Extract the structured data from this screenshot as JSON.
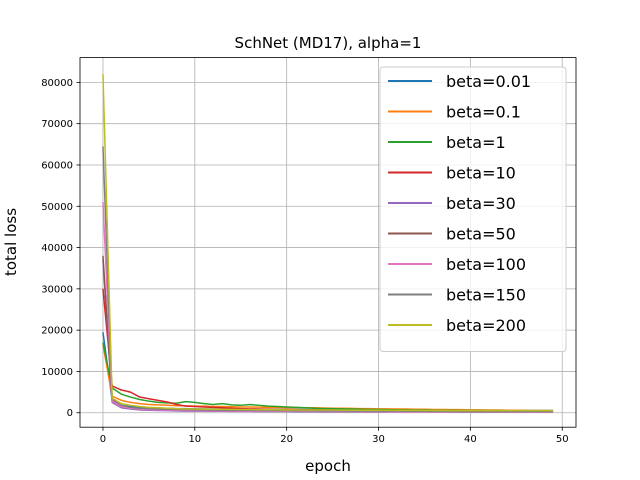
{
  "chart_data": {
    "type": "line",
    "title": "SchNet (MD17), alpha=1",
    "xlabel": "epoch",
    "ylabel": "total loss",
    "xlim": [
      -2.5,
      51.5
    ],
    "ylim": [
      -3500,
      86000
    ],
    "xticks": [
      0,
      10,
      20,
      30,
      40,
      50
    ],
    "yticks": [
      0,
      10000,
      20000,
      30000,
      40000,
      50000,
      60000,
      70000,
      80000
    ],
    "grid": true,
    "legend_position": "top-right",
    "x": [
      0,
      1,
      2,
      3,
      4,
      5,
      6,
      7,
      8,
      9,
      10,
      11,
      12,
      13,
      14,
      15,
      16,
      17,
      18,
      19,
      20,
      21,
      22,
      23,
      24,
      25,
      26,
      27,
      28,
      29,
      30,
      31,
      32,
      33,
      34,
      35,
      36,
      37,
      38,
      39,
      40,
      41,
      42,
      43,
      44,
      45,
      46,
      47,
      48,
      49
    ],
    "series": [
      {
        "name": "beta=0.01",
        "color": "#1f77b4",
        "values": [
          19500,
          3000,
          1800,
          1500,
          1300,
          1200,
          1100,
          1100,
          1000,
          1000,
          950,
          900,
          900,
          880,
          860,
          850,
          840,
          830,
          820,
          810,
          800,
          790,
          780,
          770,
          760,
          760,
          750,
          740,
          740,
          730,
          720,
          710,
          700,
          690,
          680,
          670,
          660,
          650,
          640,
          630,
          620,
          610,
          600,
          590,
          580,
          570,
          560,
          550,
          540,
          530
        ]
      },
      {
        "name": "beta=0.1",
        "color": "#ff7f0e",
        "values": [
          16500,
          4000,
          3000,
          2500,
          2200,
          2000,
          1900,
          1800,
          1700,
          1700,
          1600,
          1600,
          1500,
          1500,
          1450,
          1400,
          1400,
          1350,
          1300,
          1300,
          1250,
          1250,
          1200,
          1200,
          1150,
          1100,
          1100,
          1050,
          1000,
          1000,
          950,
          950,
          900,
          900,
          850,
          850,
          800,
          800,
          750,
          750,
          700,
          700,
          650,
          650,
          600,
          600,
          550,
          550,
          500,
          500
        ]
      },
      {
        "name": "beta=1",
        "color": "#2ca02c",
        "values": [
          17000,
          6000,
          4500,
          3800,
          3200,
          2800,
          2500,
          2400,
          2300,
          2700,
          2500,
          2200,
          2000,
          2200,
          1900,
          1800,
          2000,
          1800,
          1600,
          1500,
          1400,
          1300,
          1200,
          1100,
          1000,
          1000,
          950,
          900,
          850,
          800,
          800,
          750,
          700,
          700,
          650,
          650,
          600,
          600,
          600,
          550,
          550,
          550,
          500,
          500,
          500,
          450,
          450,
          450,
          400,
          400
        ]
      },
      {
        "name": "beta=10",
        "color": "#d62728",
        "values": [
          30000,
          6500,
          5500,
          5000,
          3800,
          3400,
          3000,
          2600,
          2000,
          1600,
          1500,
          1400,
          1300,
          1200,
          1100,
          1000,
          950,
          900,
          850,
          800,
          800,
          750,
          700,
          700,
          650,
          650,
          600,
          600,
          550,
          550,
          500,
          500,
          480,
          460,
          440,
          420,
          400,
          380,
          360,
          340,
          320,
          300,
          300,
          300,
          300,
          300,
          300,
          300,
          300,
          300
        ]
      },
      {
        "name": "beta=30",
        "color": "#9467bd",
        "values": [
          37000,
          2500,
          1200,
          900,
          700,
          600,
          550,
          500,
          450,
          400,
          400,
          380,
          360,
          350,
          340,
          330,
          320,
          310,
          300,
          300,
          290,
          280,
          270,
          260,
          250,
          250,
          240,
          230,
          220,
          210,
          200,
          200,
          200,
          200,
          200,
          200,
          200,
          200,
          200,
          200,
          200,
          200,
          200,
          200,
          200,
          200,
          200,
          200,
          200,
          200
        ]
      },
      {
        "name": "beta=50",
        "color": "#8c564b",
        "values": [
          38000,
          3000,
          1600,
          1200,
          1000,
          900,
          800,
          750,
          700,
          650,
          600,
          580,
          560,
          540,
          520,
          500,
          480,
          460,
          440,
          420,
          400,
          390,
          380,
          370,
          360,
          350,
          340,
          330,
          320,
          310,
          300,
          290,
          280,
          270,
          260,
          250,
          240,
          230,
          220,
          210,
          200,
          200,
          200,
          200,
          200,
          200,
          200,
          200,
          200,
          200
        ]
      },
      {
        "name": "beta=100",
        "color": "#e377c2",
        "values": [
          51000,
          2800,
          1500,
          1100,
          900,
          800,
          700,
          650,
          600,
          560,
          520,
          500,
          480,
          460,
          440,
          420,
          400,
          390,
          380,
          370,
          360,
          350,
          340,
          330,
          320,
          310,
          300,
          290,
          280,
          270,
          260,
          250,
          240,
          230,
          220,
          210,
          200,
          200,
          200,
          200,
          200,
          200,
          200,
          200,
          200,
          200,
          200,
          200,
          200,
          200
        ]
      },
      {
        "name": "beta=150",
        "color": "#7f7f7f",
        "values": [
          64500,
          3500,
          1800,
          1300,
          1100,
          1000,
          900,
          850,
          800,
          750,
          700,
          680,
          660,
          640,
          620,
          600,
          580,
          560,
          540,
          520,
          500,
          490,
          480,
          470,
          460,
          450,
          440,
          430,
          420,
          410,
          400,
          390,
          380,
          370,
          360,
          350,
          340,
          330,
          320,
          310,
          300,
          300,
          300,
          300,
          300,
          300,
          300,
          300,
          300,
          300
        ]
      },
      {
        "name": "beta=200",
        "color": "#bcbd22",
        "values": [
          82000,
          3500,
          2200,
          1800,
          1500,
          1300,
          1200,
          1100,
          1000,
          950,
          900,
          880,
          860,
          840,
          820,
          800,
          780,
          760,
          740,
          720,
          700,
          690,
          680,
          670,
          660,
          650,
          640,
          630,
          620,
          610,
          600,
          590,
          580,
          570,
          560,
          550,
          540,
          530,
          520,
          510,
          500,
          500,
          500,
          500,
          500,
          500,
          500,
          500,
          500,
          500
        ]
      }
    ]
  }
}
